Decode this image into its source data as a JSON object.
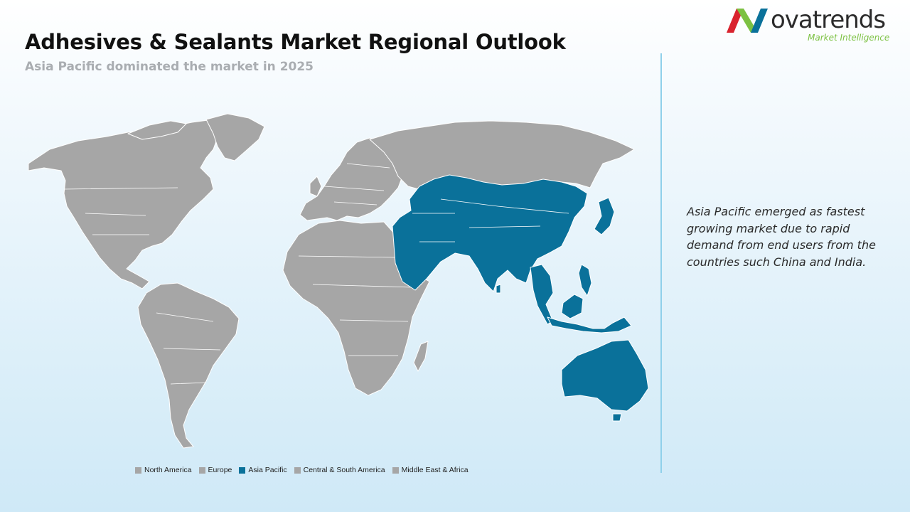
{
  "header": {
    "title": "Adhesives & Sealants Market Regional Outlook",
    "subtitle": "Asia Pacific dominated the market in 2025"
  },
  "brand": {
    "name": "ovatrends",
    "tagline": "Market Intelligence",
    "colors": {
      "red": "#d9232e",
      "green": "#7cc142",
      "blue": "#0a719a"
    }
  },
  "insight": {
    "text": "Asia Pacific emerged as fastest growing market due to rapid demand from end users  from the countries such China and India."
  },
  "map": {
    "highlight_color": "#0a719a",
    "default_color": "#a6a6a6",
    "highlighted_region": "Asia Pacific"
  },
  "legend": {
    "items": [
      {
        "label": "North America",
        "color": "#a6a6a6"
      },
      {
        "label": "Europe",
        "color": "#a6a6a6"
      },
      {
        "label": "Asia Pacific",
        "color": "#0a719a"
      },
      {
        "label": "Central & South America",
        "color": "#a6a6a6"
      },
      {
        "label": "Middle East & Africa",
        "color": "#a6a6a6"
      }
    ]
  }
}
